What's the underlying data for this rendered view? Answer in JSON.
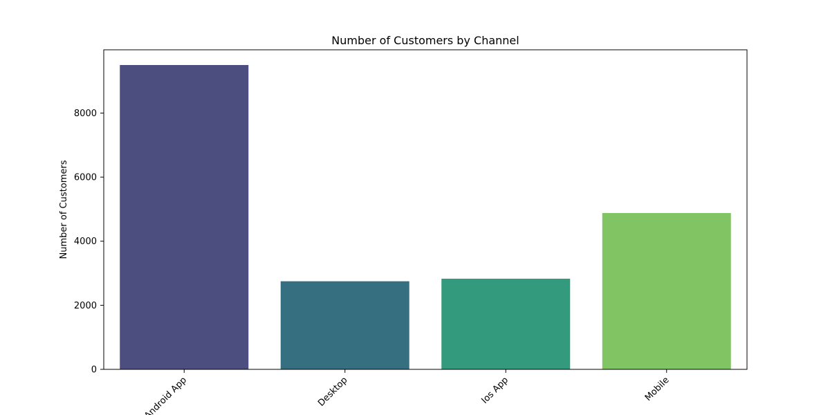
{
  "chart_data": {
    "type": "bar",
    "title": "Number of Customers by Channel",
    "xlabel": "",
    "ylabel": "Number of Customers",
    "categories": [
      "Android App",
      "Desktop",
      "Ios App",
      "Mobile"
    ],
    "values": [
      9500,
      2750,
      2830,
      4880
    ],
    "colors": [
      "#4b4e7e",
      "#366f80",
      "#339a7d",
      "#80c463"
    ],
    "ylim": [
      0,
      9975
    ],
    "yticks": [
      0,
      2000,
      4000,
      6000,
      8000
    ],
    "ytick_labels": [
      "0",
      "2000",
      "4000",
      "6000",
      "8000"
    ],
    "grid": false,
    "legend": "none"
  }
}
